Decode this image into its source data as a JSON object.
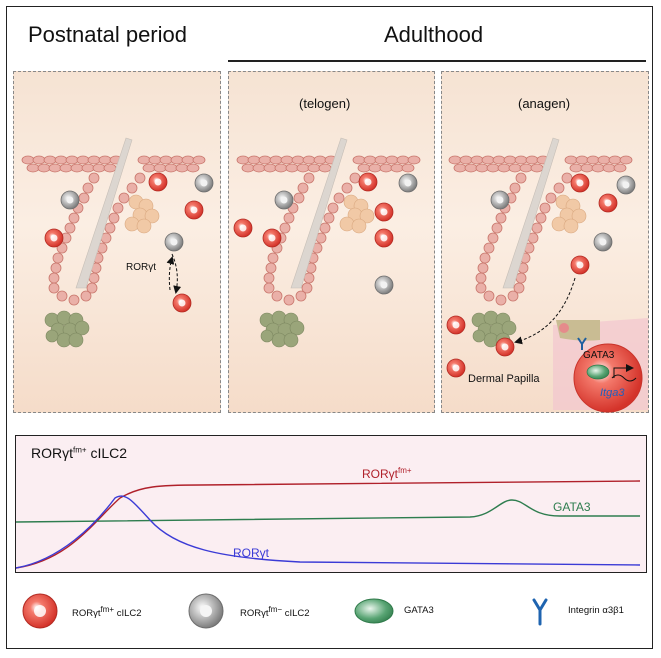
{
  "titles": {
    "postnatal": "Postnatal period",
    "adulthood": "Adulthood"
  },
  "phases": {
    "telogen": "(telogen)",
    "anagen": "(anagen)"
  },
  "panel1": {
    "arrow_label": "RORγt"
  },
  "panel3": {
    "dermal_papilla": "Dermal Papilla",
    "inset_gata3": "GATA3",
    "inset_gene": "Itga3"
  },
  "curve_panel": {
    "title_main": "RORγt",
    "title_sup": "fm+",
    "title_suffix": " cILC2",
    "series": {
      "roryt_fm": {
        "name": "RORγt",
        "sup": "fm+",
        "color": "#b0212b"
      },
      "gata3": {
        "name": "GATA3",
        "color": "#2e7d4f"
      },
      "roryt": {
        "name": "RORγt",
        "color": "#3b3bd6"
      }
    }
  },
  "legend": {
    "red_cell": {
      "label": "RORγt",
      "sup": "fm+",
      "suffix": " cILC2"
    },
    "grey_cell": {
      "label": "RORγt",
      "sup": "fm−",
      "suffix": " cILC2"
    },
    "gata3": {
      "label": "GATA3"
    },
    "integrin": {
      "label": "Integrin α3β1"
    }
  },
  "colors": {
    "red_cell": "#e8473a",
    "grey_cell": "#9a9a9a",
    "follicle": "#e9a9a2",
    "dermal_papilla": "#8f9a6b",
    "background": "#fbeee3"
  }
}
